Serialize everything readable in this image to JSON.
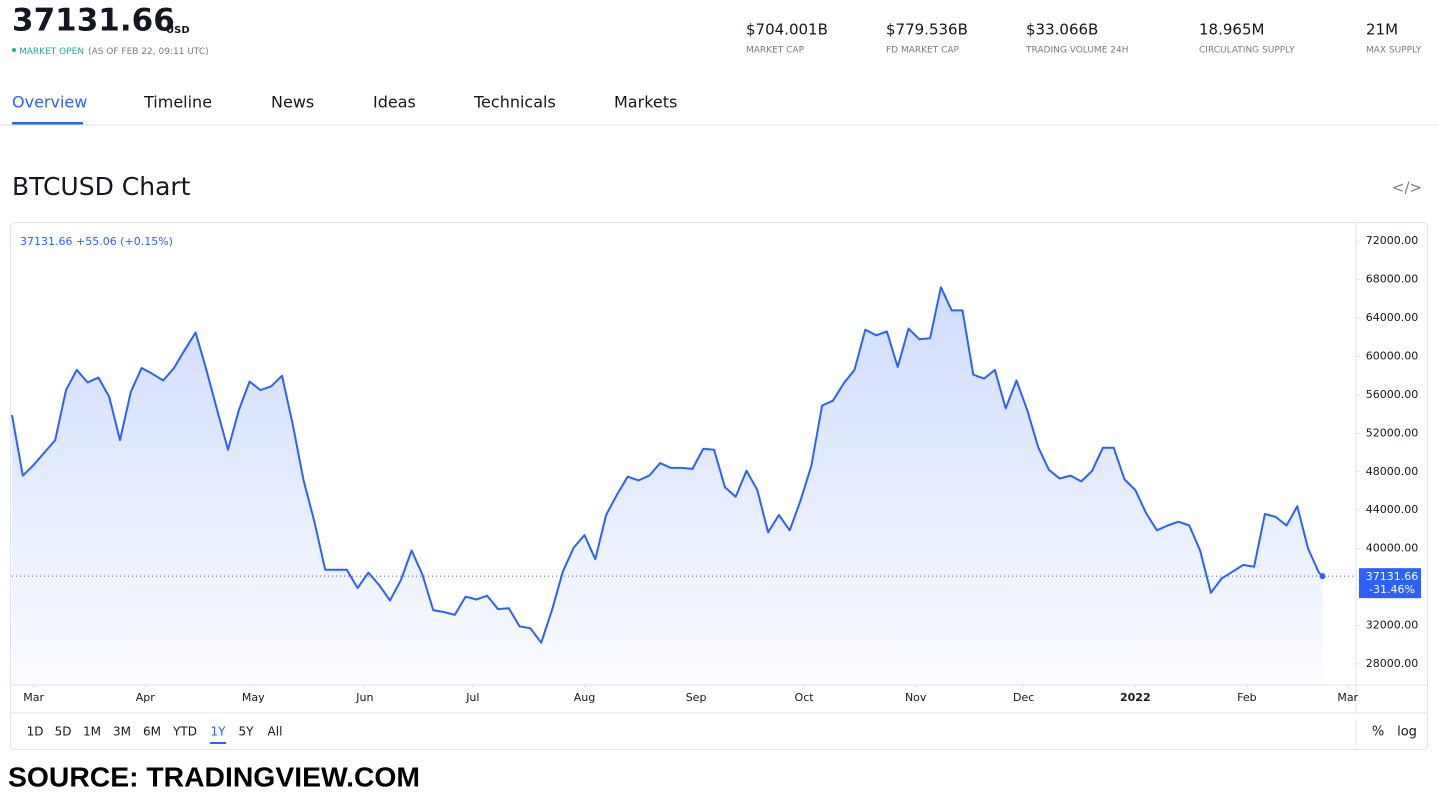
{
  "header": {
    "price": "37131.66",
    "currency": "USD",
    "status": "MARKET OPEN",
    "as_of": "(AS OF FEB 22, 09:11 UTC)",
    "stats": [
      {
        "value": "$704.001B",
        "label": "MARKET CAP"
      },
      {
        "value": "$779.536B",
        "label": "FD MARKET CAP"
      },
      {
        "value": "$33.066B",
        "label": "TRADING VOLUME 24H"
      },
      {
        "value": "18.965M",
        "label": "CIRCULATING SUPPLY"
      },
      {
        "value": "21M",
        "label": "MAX SUPPLY"
      }
    ]
  },
  "tabs": [
    "Overview",
    "Timeline",
    "News",
    "Ideas",
    "Technicals",
    "Markets"
  ],
  "section_title": "BTCUSD Chart",
  "embed_icon": "</>",
  "chart_data": {
    "type": "line",
    "legend_text": "37131.66  +55.06 (+0.15%)",
    "change_label": "-31.46%",
    "color": "#2962ff",
    "x": [
      0,
      3,
      6,
      9,
      12,
      15,
      18,
      21,
      24,
      27,
      30,
      33,
      36,
      39,
      42,
      45,
      48,
      51,
      54,
      57,
      60,
      63,
      66,
      69,
      72,
      75,
      78,
      81,
      84,
      87,
      90,
      93,
      96,
      99,
      102,
      105,
      108,
      111,
      114,
      117,
      120,
      123,
      126,
      129,
      132,
      135,
      138,
      141,
      144,
      147,
      150,
      153,
      156,
      159,
      162,
      165,
      168,
      171,
      174,
      177,
      180,
      183,
      186,
      189,
      192,
      195,
      198,
      201,
      204,
      207,
      210,
      213,
      216,
      219,
      222,
      225,
      228,
      231,
      234,
      237,
      240,
      243,
      246,
      249,
      252,
      255,
      258,
      261,
      264,
      267,
      270,
      273,
      276,
      279,
      282,
      285,
      288,
      291,
      294,
      297,
      300,
      303,
      306,
      309,
      312,
      315,
      318,
      321,
      324,
      327,
      330,
      333,
      336,
      339,
      342,
      345,
      348,
      351,
      354,
      357,
      360,
      363,
      364
    ],
    "values": [
      53900,
      47600,
      48700,
      50000,
      51300,
      56500,
      58600,
      57300,
      57800,
      55800,
      51300,
      56300,
      58800,
      58200,
      57500,
      58800,
      60700,
      62500,
      58600,
      54400,
      50300,
      54400,
      57400,
      56500,
      56900,
      58000,
      52900,
      47100,
      42800,
      37800,
      37800,
      37800,
      35900,
      37500,
      36200,
      34600,
      36700,
      39800,
      37300,
      33600,
      33400,
      33100,
      35000,
      34700,
      35100,
      33700,
      33800,
      31900,
      31700,
      30200,
      33600,
      37600,
      40100,
      41400,
      38900,
      43500,
      45600,
      47500,
      47100,
      47600,
      48900,
      48400,
      48400,
      48300,
      50400,
      50300,
      46400,
      45400,
      48100,
      46100,
      41700,
      43500,
      41900,
      45000,
      48600,
      54900,
      55400,
      57200,
      58600,
      62800,
      62200,
      62600,
      58900,
      62900,
      61800,
      61900,
      67200,
      64800,
      64800,
      58100,
      57700,
      58600,
      54600,
      57500,
      54400,
      50600,
      48200,
      47300,
      47600,
      47000,
      48100,
      50500,
      50500,
      47200,
      46100,
      43700,
      41900,
      42400,
      42800,
      42400,
      39800,
      35400,
      36900,
      37600,
      38300,
      38100,
      43600,
      43300,
      42400,
      44400,
      40000,
      37500,
      37131.66
    ],
    "xlim": [
      0,
      373.3
    ],
    "xticks": [
      {
        "value": 6,
        "label": "Mar"
      },
      {
        "value": 37,
        "label": "Apr"
      },
      {
        "value": 67,
        "label": "May"
      },
      {
        "value": 98,
        "label": "Jun"
      },
      {
        "value": 128,
        "label": "Jul"
      },
      {
        "value": 159,
        "label": "Aug"
      },
      {
        "value": 190,
        "label": "Sep"
      },
      {
        "value": 220,
        "label": "Oct"
      },
      {
        "value": 251,
        "label": "Nov"
      },
      {
        "value": 281,
        "label": "Dec"
      },
      {
        "value": 312,
        "label": "2022"
      },
      {
        "value": 343,
        "label": "Feb"
      },
      {
        "value": 371,
        "label": "Mar"
      }
    ],
    "ylim": [
      25800,
      74000
    ],
    "yticks": [
      {
        "value": 28000,
        "label": "28000.00"
      },
      {
        "value": 32000,
        "label": "32000.00"
      },
      {
        "value": 36000,
        "label": "36000.00"
      },
      {
        "value": 40000,
        "label": "40000.00"
      },
      {
        "value": 44000,
        "label": "44000.00"
      },
      {
        "value": 48000,
        "label": "48000.00"
      },
      {
        "value": 52000,
        "label": "52000.00"
      },
      {
        "value": 56000,
        "label": "56000.00"
      },
      {
        "value": 60000,
        "label": "60000.00"
      },
      {
        "value": 64000,
        "label": "64000.00"
      },
      {
        "value": 68000,
        "label": "68000.00"
      },
      {
        "value": 72000,
        "label": "72000.00"
      }
    ],
    "log": false
  },
  "ranges": [
    "1D",
    "5D",
    "1M",
    "3M",
    "6M",
    "YTD",
    "1Y",
    "5Y",
    "All"
  ],
  "scale_buttons": [
    "%",
    "log"
  ],
  "source": "SOURCE: TRADINGVIEW.COM"
}
